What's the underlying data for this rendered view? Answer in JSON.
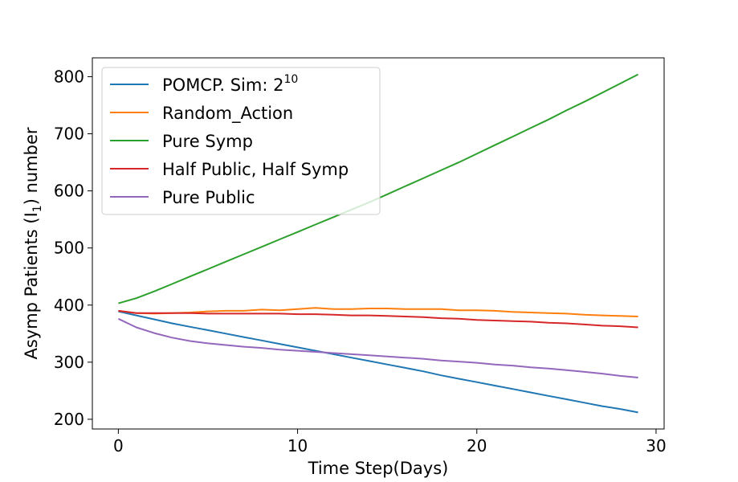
{
  "chart_data": {
    "type": "line",
    "title": "",
    "xlabel": "Time Step(Days)",
    "ylabel_prefix": "Asymp Patients (I",
    "ylabel_subscript": "1",
    "ylabel_suffix": ") number",
    "xlim": [
      -1.45,
      30.45
    ],
    "ylim": [
      183,
      833
    ],
    "xticks": [
      0,
      10,
      20,
      30
    ],
    "yticks": [
      200,
      300,
      400,
      500,
      600,
      700,
      800
    ],
    "grid": false,
    "legend_position": "upper-left",
    "x": [
      0,
      1,
      2,
      3,
      4,
      5,
      6,
      7,
      8,
      9,
      10,
      11,
      12,
      13,
      14,
      15,
      16,
      17,
      18,
      19,
      20,
      21,
      22,
      23,
      24,
      25,
      26,
      27,
      28,
      29
    ],
    "series": [
      {
        "name": "POMCP. Sim: 2",
        "name_superscript": "10",
        "color": "#1f77b4",
        "values": [
          389,
          382,
          375,
          368,
          362,
          356,
          350,
          344,
          338,
          332,
          326,
          320,
          314,
          308,
          302,
          296,
          290,
          284,
          277,
          271,
          265,
          259,
          253,
          247,
          241,
          235,
          229,
          223,
          218,
          212
        ]
      },
      {
        "name": "Random_Action",
        "color": "#ff7f0e",
        "values": [
          390,
          386,
          385,
          386,
          387,
          389,
          390,
          390,
          392,
          391,
          393,
          395,
          393,
          393,
          394,
          394,
          393,
          393,
          393,
          391,
          391,
          390,
          388,
          387,
          386,
          385,
          383,
          382,
          381,
          380
        ]
      },
      {
        "name": "Pure Symp",
        "color": "#2ca02c",
        "values": [
          403,
          412,
          424,
          437,
          450,
          463,
          476,
          489,
          502,
          515,
          528,
          541,
          554,
          567,
          580,
          594,
          608,
          622,
          636,
          650,
          665,
          680,
          695,
          710,
          725,
          741,
          756,
          772,
          788,
          804
        ]
      },
      {
        "name": "Half Public, Half Symp",
        "color": "#d62728",
        "values": [
          390,
          386,
          386,
          386,
          386,
          385,
          385,
          385,
          385,
          385,
          384,
          384,
          383,
          382,
          382,
          381,
          380,
          379,
          377,
          376,
          374,
          373,
          372,
          371,
          369,
          368,
          366,
          364,
          363,
          361
        ]
      },
      {
        "name": "Pure Public",
        "color": "#9467bd",
        "values": [
          376,
          361,
          351,
          343,
          337,
          333,
          330,
          327,
          325,
          322,
          320,
          318,
          316,
          314,
          312,
          310,
          308,
          306,
          303,
          301,
          299,
          296,
          294,
          291,
          289,
          286,
          283,
          280,
          276,
          273
        ]
      }
    ]
  }
}
